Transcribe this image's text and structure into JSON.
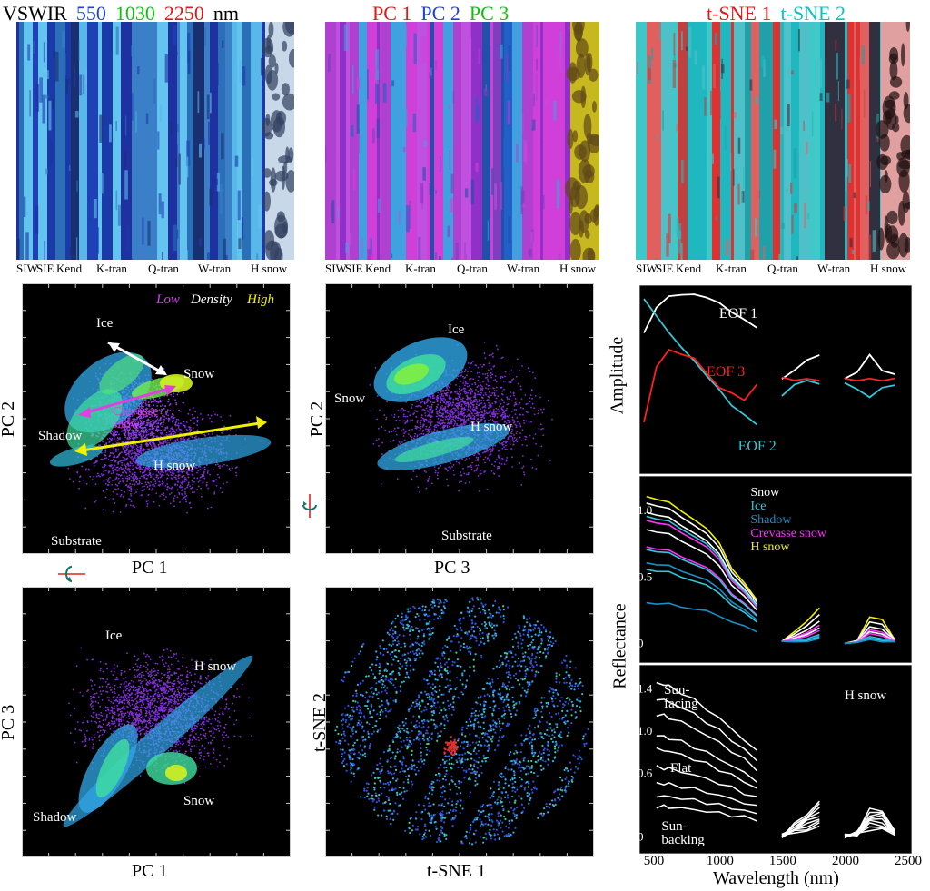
{
  "top_panels": [
    {
      "title_parts": [
        {
          "text": "VSWIR",
          "color": "#000000"
        },
        {
          "text": "550",
          "color": "#1f3fe0"
        },
        {
          "text": "1030",
          "color": "#10c010"
        },
        {
          "text": "2250",
          "color": "#e01818"
        },
        {
          "text": "nm",
          "color": "#000000"
        }
      ],
      "labels": [
        "SIW",
        "SIE",
        "Kend",
        "K-tran",
        "Q-tran",
        "W-tran",
        "H snow"
      ]
    },
    {
      "title_parts": [
        {
          "text": "PC 1",
          "color": "#e01818"
        },
        {
          "text": "PC 2",
          "color": "#1f3fe0"
        },
        {
          "text": "PC 3",
          "color": "#10c010"
        }
      ],
      "labels": [
        "SIW",
        "SIE",
        "Kend",
        "K-tran",
        "Q-tran",
        "W-tran",
        "H snow"
      ]
    },
    {
      "title_parts": [
        {
          "text": "t-SNE 1",
          "color": "#e01818"
        },
        {
          "text": "t-SNE 2",
          "color": "#10c0c0"
        }
      ],
      "labels": [
        "SIW",
        "SIE",
        "Kend",
        "K-tran",
        "Q-tran",
        "W-tran",
        "H snow"
      ]
    }
  ],
  "density_legend": {
    "low": "Low",
    "density": "Density",
    "high": "High"
  },
  "scatter1": {
    "xlabel": "PC 1",
    "ylabel": "PC 2",
    "labels": {
      "ice": "Ice",
      "snow": "Snow",
      "crevasse": "Crevasse\nsnow",
      "shadow": "Shadow",
      "hsnow": "H snow",
      "substrate": "Substrate"
    }
  },
  "scatter2": {
    "xlabel": "PC 3",
    "ylabel": "PC 2",
    "labels": {
      "ice": "Ice",
      "snow": "Snow",
      "hsnow": "H snow",
      "substrate": "Substrate"
    }
  },
  "scatter3": {
    "xlabel": "PC 1",
    "ylabel": "PC 3",
    "labels": {
      "ice": "Ice",
      "hsnow": "H snow",
      "snow": "Snow",
      "shadow": "Shadow"
    }
  },
  "scatter4": {
    "xlabel": "t-SNE 1",
    "ylabel": "t-SNE 2"
  },
  "chart_data": [
    {
      "type": "line",
      "panel": "eof",
      "ylabel": "Amplitude",
      "xlim": [
        400,
        2500
      ],
      "series": [
        {
          "name": "EOF 1",
          "color": "#ffffff",
          "x": [
            400,
            500,
            600,
            700,
            800,
            900,
            1000,
            1100,
            1200,
            1300,
            1500,
            1600,
            1700,
            1800,
            2000,
            2100,
            2200,
            2300,
            2400
          ],
          "y": [
            0.55,
            0.85,
            0.98,
            1.0,
            1.0,
            0.97,
            0.9,
            0.8,
            0.7,
            0.62,
            0.0,
            0.12,
            0.22,
            0.3,
            0.0,
            0.1,
            0.28,
            0.12,
            0.05
          ]
        },
        {
          "name": "EOF 2",
          "color": "#33c8d8",
          "x": [
            400,
            500,
            600,
            700,
            800,
            900,
            1000,
            1100,
            1200,
            1300,
            1500,
            1600,
            1700,
            1800,
            2000,
            2100,
            2200,
            2300,
            2400
          ],
          "y": [
            0.95,
            0.75,
            0.55,
            0.38,
            0.22,
            0.05,
            -0.12,
            -0.3,
            -0.42,
            -0.52,
            -0.2,
            -0.05,
            -0.02,
            -0.04,
            -0.05,
            -0.1,
            -0.22,
            -0.08,
            -0.08
          ]
        },
        {
          "name": "EOF 3",
          "color": "#ff2020",
          "x": [
            400,
            500,
            600,
            700,
            800,
            900,
            1000,
            1100,
            1200,
            1300,
            1500,
            1600,
            1700,
            1800,
            2000,
            2100,
            2200,
            2300,
            2400
          ],
          "y": [
            -0.5,
            0.15,
            0.35,
            0.3,
            0.25,
            0.08,
            -0.1,
            -0.15,
            -0.25,
            -0.05,
            0.02,
            0.0,
            0.0,
            0.0,
            0.0,
            0.0,
            0.0,
            0.0,
            0.0
          ]
        }
      ]
    },
    {
      "type": "line",
      "panel": "reflectance",
      "ylabel": "Reflectance",
      "xlim": [
        400,
        2500
      ],
      "ylim": [
        -0.1,
        1.2
      ],
      "yticks": [
        "0",
        "0.5",
        "1.0"
      ],
      "series": [
        {
          "name": "Snow",
          "color": "#ffffff"
        },
        {
          "name": "Ice",
          "color": "#33c8d8"
        },
        {
          "name": "Shadow",
          "color": "#1890c8"
        },
        {
          "name": "Crevasse snow",
          "color": "#ff30ff"
        },
        {
          "name": "H snow",
          "color": "#f0f000"
        }
      ]
    },
    {
      "type": "line",
      "panel": "hsnow",
      "xlabel": "Wavelength (nm)",
      "xlim": [
        400,
        2500
      ],
      "ylim": [
        -0.1,
        1.55
      ],
      "yticks": [
        "0",
        "0.6",
        "1.0",
        "1.4"
      ],
      "xticks": [
        "500",
        "1000",
        "1500",
        "2000",
        "2500"
      ],
      "title": "H snow",
      "annotations": [
        "Sun-\nfacing",
        "Flat",
        "Sun-\nbacking"
      ]
    }
  ]
}
